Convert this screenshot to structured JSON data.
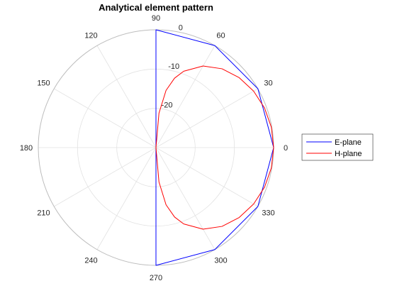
{
  "chart_data": {
    "type": "polar-line",
    "title": "Analytical element pattern",
    "angle_unit": "degrees",
    "radial_unit": "dB",
    "r_range": [
      -30,
      0
    ],
    "r_ticks": [
      -20,
      -10,
      0
    ],
    "r_tick_labels": [
      "-20",
      "-10",
      "0"
    ],
    "theta_ticks": [
      0,
      30,
      60,
      90,
      120,
      150,
      180,
      210,
      240,
      270,
      300,
      330
    ],
    "theta_tick_labels": [
      "0",
      "30",
      "60",
      "90",
      "120",
      "150",
      "180",
      "210",
      "240",
      "270",
      "300",
      "330"
    ],
    "grid": true,
    "legend_position": "right",
    "series": [
      {
        "name": "E-plane",
        "color": "#0000ff",
        "theta": [
          -90,
          -90,
          -60,
          -30,
          0,
          30,
          60,
          90,
          90
        ],
        "r": [
          -30,
          0,
          0,
          0,
          0,
          0,
          0,
          0,
          -30
        ]
      },
      {
        "name": "H-plane",
        "color": "#ff0000",
        "theta": [
          -90,
          -85,
          -80,
          -75,
          -70,
          -60,
          -50,
          -40,
          -30,
          -20,
          -10,
          0,
          10,
          20,
          30,
          40,
          50,
          60,
          70,
          75,
          80,
          85,
          90
        ],
        "r": [
          -30,
          -21.2,
          -15.2,
          -11.7,
          -9.3,
          -6.0,
          -3.8,
          -2.3,
          -1.25,
          -0.54,
          -0.13,
          0,
          -0.13,
          -0.54,
          -1.25,
          -2.3,
          -3.8,
          -6.0,
          -9.3,
          -11.7,
          -15.2,
          -21.2,
          -30
        ]
      }
    ]
  }
}
